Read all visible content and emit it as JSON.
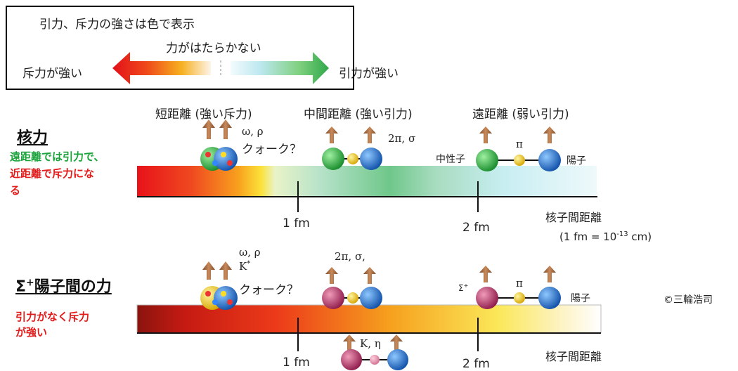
{
  "legend": {
    "title": "引力、斥力の強さは色で表示",
    "neutral": "力がはたらかない",
    "left": "斥力が強い",
    "right": "引力が強い"
  },
  "nuclear": {
    "title": "核力",
    "desc_green": "遠距離では引力で、",
    "desc_red": "近距離で斥力にな",
    "desc_red2": "る",
    "short_range": "短距離 (強い斥力)",
    "mid_range": "中間距離 (強い引力)",
    "long_range": "遠距離 (弱い引力)",
    "short_mesons": "ω, ρ",
    "quark": "クォーク？",
    "mid_mesons": "2π, σ",
    "long_meson": "π",
    "neutron_label": "中性子",
    "proton_label": "陽子",
    "tick1": "1 fm",
    "tick2": "2 fm",
    "axis_label": "核子間距離",
    "axis_note": "(1 fm = 10",
    "axis_note_exp": "-13",
    "axis_note_end": " cm)"
  },
  "sigma": {
    "title_sigma": "Σ",
    "title_sup": "+",
    "title_rest": "陽子間の力",
    "desc_red": "引力がなく斥力",
    "desc_red2": "が強い",
    "short_mesons": "ω, ρ",
    "short_mesons2": "K",
    "short_mesons2_sup": "*",
    "quark": "クォーク？",
    "mid_mesons": "2π, σ,",
    "k_eta": "K, η",
    "long_meson": "π",
    "sigma_label": "Σ",
    "sigma_label_sup": "+",
    "proton_label": "陽子",
    "tick1": "1 fm",
    "tick2": "2 fm",
    "axis_label": "核子間距離"
  },
  "copyright": "©三輪浩司",
  "colors": {
    "repulsive": "#e5141b",
    "attractive": "#2fa84a",
    "neutron": "#2fb040",
    "proton": "#1e6fd0",
    "sigma": "#c0306a",
    "meson": "#f2d020",
    "spin": "#a9683d"
  }
}
